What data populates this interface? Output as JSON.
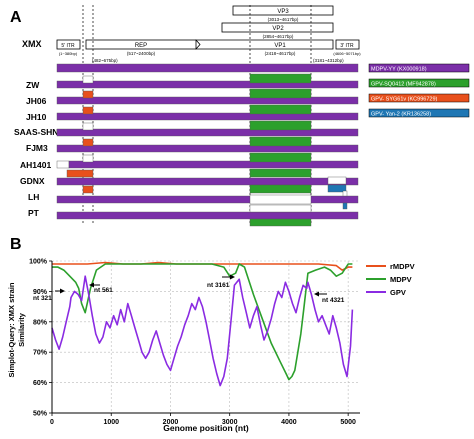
{
  "panel_a": {
    "panel_label": "A",
    "reference": "XMX",
    "genome_map": {
      "vp3": "VP3",
      "vp3_range": "(3013~4617bp)",
      "vp2": "VP2",
      "vp2_range": "(2854~4617bp)",
      "itr5": "5' ITR",
      "itr5_range": "(1~380bp)",
      "rep": "REP",
      "rep_range": "(517~2400bp)",
      "vp1": "VP1",
      "vp1_range": "(2418~4617bp)",
      "itr3": "3' ITR",
      "itr3_range": "(4606~5071bp)",
      "pos_a": "(482~675bp)",
      "pos_b": "(3181~4312bp)"
    },
    "strains": [
      "ZW",
      "JH06",
      "JH10",
      "SAAS-SHNH",
      "FJM3",
      "AH1401",
      "GDNX",
      "LH",
      "PT"
    ],
    "legend": [
      {
        "label": "MDPV-YY (KX000918)",
        "color": "#7b2fa8"
      },
      {
        "label": "GPV-SQ0412 (MF942878)",
        "color": "#2ca02c"
      },
      {
        "label": "GPV- SYG61v (KC996729)",
        "color": "#e8501c"
      },
      {
        "label": "GPV- Yan-2 (KR136258)",
        "color": "#1f77b4"
      }
    ]
  },
  "panel_b": {
    "panel_label": "B",
    "annotations": [
      "nt 321",
      "nt 561",
      "nt 3161",
      "nt 4321"
    ]
  },
  "chart_data": {
    "type": "line",
    "xlabel": "Genome position (nt)",
    "ylabel": "Simplot-Query: XMX strain\nSimilarity",
    "ylabel_line1": "Simplot-Query: XMX strain",
    "ylabel_line2": "Similarity",
    "xlim": [
      0,
      5200
    ],
    "ylim": [
      50,
      100
    ],
    "xticks": [
      "0",
      "1000",
      "2000",
      "3000",
      "4000",
      "5000"
    ],
    "yticks": [
      "50%",
      "60%",
      "70%",
      "80%",
      "90%",
      "100%"
    ],
    "grid": true,
    "legend_position": "right",
    "series": [
      {
        "name": "rMDPV",
        "color": "#e8501c",
        "x": [
          0,
          300,
          600,
          900,
          1200,
          1500,
          1800,
          2100,
          2400,
          2700,
          3000,
          3300,
          3600,
          3900,
          4200,
          4500,
          4800,
          4900,
          5000,
          5071
        ],
        "y": [
          99,
          99,
          99,
          99.5,
          99,
          99,
          99.5,
          99,
          99,
          99,
          99,
          99,
          99,
          99,
          99,
          99,
          98.5,
          97,
          98,
          98
        ]
      },
      {
        "name": "MDPV",
        "x": [
          0,
          100,
          200,
          300,
          400,
          450,
          500,
          561,
          650,
          750,
          900,
          1000,
          1100,
          1300,
          1500,
          1800,
          2100,
          2400,
          2700,
          2900,
          3000,
          3100,
          3161,
          3250,
          3400,
          3550,
          3700,
          3850,
          3950,
          4000,
          4050,
          4100,
          4150,
          4200,
          4250,
          4321,
          4450,
          4600,
          4700,
          4800,
          4900,
          5000,
          5071
        ],
        "y": [
          98,
          98,
          97,
          95,
          93,
          91,
          86,
          83,
          91,
          97,
          99,
          99,
          99,
          99,
          99,
          99,
          99,
          99,
          99,
          98,
          95,
          96,
          99,
          98,
          89,
          81,
          73,
          67,
          63,
          61,
          62,
          64,
          70,
          76,
          84,
          96,
          97,
          98,
          97,
          95,
          96,
          99,
          99
        ]
      },
      {
        "name": "GPV",
        "x": [
          0,
          60,
          120,
          180,
          240,
          300,
          321,
          380,
          440,
          500,
          561,
          620,
          680,
          740,
          800,
          860,
          920,
          980,
          1040,
          1100,
          1160,
          1220,
          1280,
          1340,
          1400,
          1460,
          1520,
          1580,
          1640,
          1700,
          1760,
          1820,
          1880,
          1940,
          2000,
          2060,
          2120,
          2180,
          2240,
          2300,
          2360,
          2420,
          2480,
          2540,
          2600,
          2660,
          2720,
          2780,
          2840,
          2900,
          2960,
          3020,
          3080,
          3161,
          3220,
          3280,
          3340,
          3400,
          3460,
          3520,
          3580,
          3640,
          3700,
          3760,
          3820,
          3880,
          3940,
          4000,
          4060,
          4120,
          4180,
          4240,
          4300,
          4321,
          4380,
          4440,
          4500,
          4560,
          4620,
          4680,
          4740,
          4800,
          4860,
          4920,
          4980,
          5040,
          5071
        ],
        "y": [
          78,
          74,
          71,
          75,
          80,
          85,
          88,
          90,
          89,
          87,
          95,
          89,
          82,
          76,
          73,
          75,
          80,
          78,
          82,
          79,
          84,
          80,
          86,
          82,
          78,
          74,
          70,
          68,
          70,
          74,
          77,
          73,
          69,
          66,
          64,
          68,
          72,
          75,
          79,
          82,
          86,
          84,
          88,
          85,
          80,
          74,
          68,
          63,
          59,
          62,
          68,
          80,
          92,
          94,
          88,
          83,
          78,
          82,
          85,
          79,
          74,
          77,
          81,
          86,
          90,
          88,
          93,
          90,
          86,
          83,
          88,
          92,
          91,
          93,
          89,
          84,
          80,
          82,
          79,
          76,
          82,
          78,
          73,
          66,
          62,
          72,
          84
        ]
      }
    ]
  }
}
